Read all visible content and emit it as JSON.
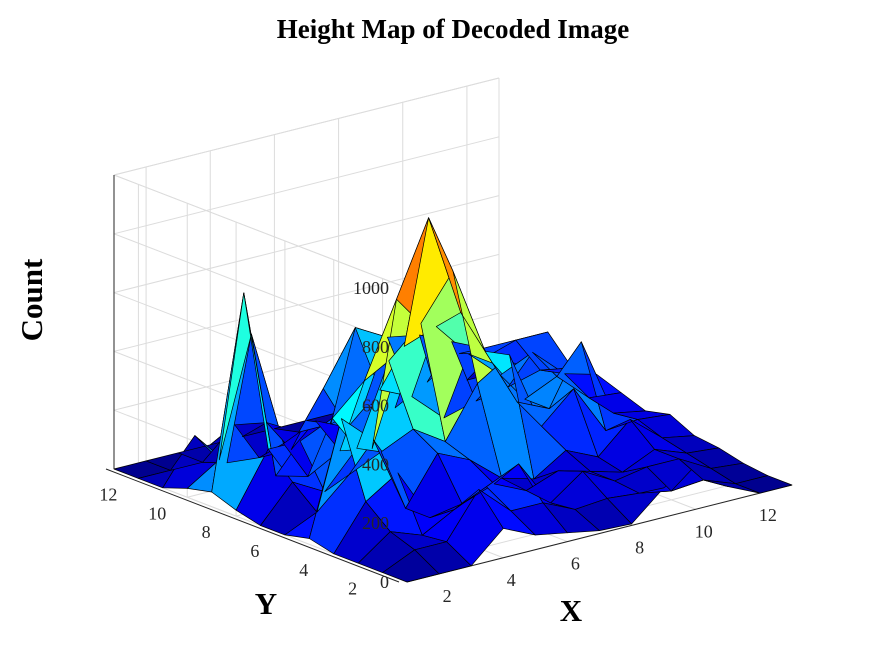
{
  "chart_data": {
    "type": "surface",
    "title": "Height Map of Decoded Image",
    "xlabel": "X",
    "ylabel": "Y",
    "zlabel": "Count",
    "x": [
      1,
      2,
      3,
      4,
      5,
      6,
      7,
      8,
      9,
      10,
      11,
      12,
      13
    ],
    "y": [
      1,
      2,
      3,
      4,
      5,
      6,
      7,
      8,
      9,
      10,
      11,
      12,
      13
    ],
    "xlim": [
      1,
      13
    ],
    "ylim": [
      1,
      13
    ],
    "zlim": [
      0,
      1000
    ],
    "x_ticks": [
      2,
      4,
      6,
      8,
      10,
      12
    ],
    "y_ticks": [
      2,
      4,
      6,
      8,
      10,
      12
    ],
    "z_ticks": [
      0,
      200,
      400,
      600,
      800,
      1000
    ],
    "grid": true,
    "colormap": "parula",
    "colormap_stops": [
      "#00008f",
      "#0000ff",
      "#007fff",
      "#00ffff",
      "#7fff7f",
      "#ffff00",
      "#ff7f00"
    ],
    "z": [
      [
        0,
        0,
        0,
        100,
        50,
        30,
        10,
        5,
        100,
        150,
        50,
        0,
        0
      ],
      [
        0,
        50,
        50,
        200,
        100,
        100,
        50,
        60,
        50,
        30,
        40,
        0,
        0
      ],
      [
        0,
        80,
        40,
        100,
        150,
        200,
        40,
        120,
        60,
        80,
        80,
        20,
        10
      ],
      [
        0,
        150,
        220,
        40,
        60,
        100,
        50,
        90,
        60,
        30,
        80,
        40,
        30
      ],
      [
        20,
        400,
        300,
        40,
        200,
        150,
        60,
        30,
        100,
        50,
        150,
        60,
        40
      ],
      [
        0,
        50,
        150,
        200,
        250,
        180,
        350,
        420,
        150,
        250,
        80,
        90,
        80
      ],
      [
        0,
        120,
        60,
        180,
        450,
        550,
        700,
        400,
        200,
        150,
        350,
        80,
        60
      ],
      [
        20,
        200,
        200,
        250,
        350,
        600,
        850,
        500,
        300,
        150,
        200,
        100,
        90
      ],
      [
        50,
        700,
        50,
        20,
        80,
        60,
        380,
        420,
        300,
        200,
        250,
        150,
        120
      ],
      [
        30,
        100,
        500,
        100,
        150,
        100,
        200,
        150,
        50,
        80,
        100,
        130,
        110
      ],
      [
        0,
        150,
        30,
        20,
        20,
        200,
        380,
        320,
        300,
        250,
        200,
        200,
        200
      ],
      [
        0,
        0,
        0,
        100,
        80,
        20,
        20,
        50,
        20,
        80,
        150,
        120,
        50
      ],
      [
        0,
        0,
        0,
        0,
        0,
        0,
        0,
        0,
        0,
        0,
        0,
        0,
        0
      ]
    ]
  }
}
